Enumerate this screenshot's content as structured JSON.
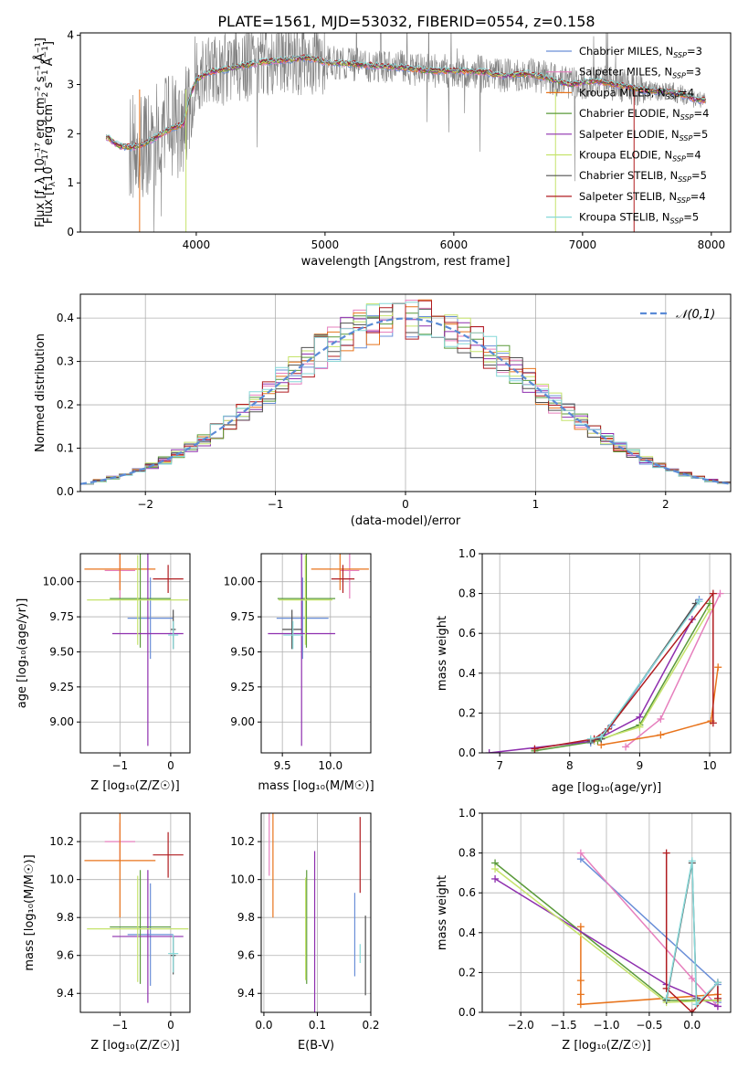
{
  "figure_title": "PLATE=1561, MJD=53032, FIBERID=0554, z=0.158",
  "colors": {
    "Chabrier MILES": "#6a8fd8",
    "Salpeter MILES": "#e67fbd",
    "Kroupa MILES": "#e8741c",
    "Chabrier ELODIE": "#5a9a3a",
    "Salpeter ELODIE": "#8e2fae",
    "Kroupa ELODIE": "#c5e36b",
    "Chabrier STELIB": "#505050",
    "Salpeter STELIB": "#b01c20",
    "Kroupa STELIB": "#86d8d8",
    "data": "#808080"
  },
  "models": [
    {
      "name": "Chabrier MILES",
      "nssp": "3",
      "Z": -0.4,
      "Zerr": 0.45,
      "age": 9.74,
      "ageerr": 0.29,
      "mass": 9.71,
      "masserr": 0.27,
      "ebv": 0.17,
      "ebverr": 0.22
    },
    {
      "name": "Salpeter MILES",
      "nssp": "3",
      "Z": -1.0,
      "Zerr": 0.3,
      "age": 10.08,
      "ageerr": 0.2,
      "mass": 10.2,
      "masserr": 0.1,
      "ebv": 0.01,
      "ebverr": 0.18
    },
    {
      "name": "Kroupa MILES",
      "nssp": "4",
      "Z": -1.0,
      "Zerr": 0.7,
      "age": 10.09,
      "ageerr": 0.15,
      "mass": 10.1,
      "masserr": 0.3,
      "ebv": 0.017,
      "ebverr": 0.3
    },
    {
      "name": "Chabrier ELODIE",
      "nssp": "4",
      "Z": -0.6,
      "Zerr": 0.6,
      "age": 9.88,
      "ageerr": 0.35,
      "mass": 9.75,
      "masserr": 0.3,
      "ebv": 0.08,
      "ebverr": 0.3
    },
    {
      "name": "Salpeter ELODIE",
      "nssp": "5",
      "Z": -0.45,
      "Zerr": 0.7,
      "age": 9.63,
      "ageerr": 0.8,
      "mass": 9.7,
      "masserr": 0.35,
      "ebv": 0.095,
      "ebverr": 0.45
    },
    {
      "name": "Kroupa ELODIE",
      "nssp": "4",
      "Z": -0.65,
      "Zerr": 1.0,
      "age": 9.87,
      "ageerr": 0.32,
      "mass": 9.74,
      "masserr": 0.28,
      "ebv": 0.078,
      "ebverr": 0.27
    },
    {
      "name": "Chabrier STELIB",
      "nssp": "5",
      "Z": 0.05,
      "Zerr": 0.05,
      "age": 9.66,
      "ageerr": 0.14,
      "mass": 9.6,
      "masserr": 0.1,
      "ebv": 0.19,
      "ebverr": 0.21
    },
    {
      "name": "Salpeter STELIB",
      "nssp": "4",
      "Z": -0.05,
      "Zerr": 0.3,
      "age": 10.02,
      "ageerr": 0.1,
      "mass": 10.13,
      "masserr": 0.12,
      "ebv": 0.18,
      "ebverr": 0.2
    },
    {
      "name": "Kroupa STELIB",
      "nssp": "5",
      "Z": 0.05,
      "Zerr": 0.1,
      "age": 9.62,
      "ageerr": 0.1,
      "mass": 9.61,
      "masserr": 0.1,
      "ebv": 0.18,
      "ebverr": 0.05
    }
  ],
  "chart_data": [
    {
      "id": "spectrum",
      "type": "line",
      "xlabel": "wavelength [Angstrom, rest frame]",
      "ylabel": "Flux [f_λ 10⁻¹⁷ erg cm⁻² s⁻¹ Å⁻¹]",
      "xlim": [
        3100,
        8150
      ],
      "ylim": [
        0,
        4.05
      ],
      "xticks": [
        4000,
        5000,
        6000,
        7000,
        8000
      ],
      "yticks": [
        0,
        1,
        2,
        3,
        4
      ],
      "legend_position": "upper-right",
      "legend": [
        "Chabrier MILES, N_SSP=3",
        "Salpeter MILES, N_SSP=3",
        "Kroupa MILES, N_SSP=4",
        "Chabrier ELODIE, N_SSP=4",
        "Salpeter ELODIE, N_SSP=5",
        "Kroupa ELODIE, N_SSP=4",
        "Chabrier STELIB, N_SSP=5",
        "Salpeter STELIB, N_SSP=4",
        "Kroupa STELIB, N_SSP=5"
      ],
      "continuum": [
        [
          3300,
          1.95
        ],
        [
          3400,
          1.75
        ],
        [
          3500,
          1.72
        ],
        [
          3600,
          1.8
        ],
        [
          3700,
          1.95
        ],
        [
          3800,
          2.1
        ],
        [
          3900,
          2.2
        ],
        [
          3950,
          2.75
        ],
        [
          4000,
          3.1
        ],
        [
          4100,
          3.25
        ],
        [
          4200,
          3.3
        ],
        [
          4300,
          3.35
        ],
        [
          4400,
          3.4
        ],
        [
          4500,
          3.45
        ],
        [
          4700,
          3.5
        ],
        [
          4861,
          3.55
        ],
        [
          5000,
          3.45
        ],
        [
          5200,
          3.42
        ],
        [
          5400,
          3.38
        ],
        [
          5600,
          3.35
        ],
        [
          5800,
          3.28
        ],
        [
          6000,
          3.28
        ],
        [
          6200,
          3.26
        ],
        [
          6400,
          3.18
        ],
        [
          6563,
          3.22
        ],
        [
          6700,
          3.15
        ],
        [
          6900,
          3.0
        ],
        [
          7100,
          3.08
        ],
        [
          7300,
          2.98
        ],
        [
          7500,
          2.88
        ],
        [
          7700,
          2.85
        ],
        [
          7900,
          2.68
        ]
      ]
    },
    {
      "id": "residuals",
      "type": "histogram",
      "xlabel": "(data-model)/error",
      "ylabel": "Normed distribution",
      "xlim": [
        -2.5,
        2.5
      ],
      "ylim": [
        0,
        0.455
      ],
      "xticks": [
        -2,
        -1,
        0,
        1,
        2
      ],
      "yticks": [
        0.0,
        0.1,
        0.2,
        0.3,
        0.4
      ],
      "reference": "𝒩(0,1)",
      "legend_position": "upper-right"
    },
    {
      "id": "age_vs_Z",
      "type": "errorbar",
      "xlabel": "Z [log₁₀(Z/Z☉)]",
      "ylabel": "age  [log₁₀(age/yr)]",
      "xlim": [
        -1.78,
        0.38
      ],
      "ylim": [
        8.78,
        10.2
      ],
      "xticks": [
        -1,
        0
      ],
      "yticks": [
        9.0,
        9.25,
        9.5,
        9.75,
        10.0
      ]
    },
    {
      "id": "age_vs_mass",
      "type": "errorbar",
      "xlabel": "mass [log₁₀(M/M☉)]",
      "ylabel": "",
      "xlim": [
        9.28,
        10.42
      ],
      "ylim": [
        8.78,
        10.2
      ],
      "xticks": [
        9.5,
        10.0
      ],
      "yticks": [
        9.0,
        9.25,
        9.5,
        9.75,
        10.0
      ]
    },
    {
      "id": "massweight_vs_age",
      "type": "line",
      "xlabel": "age  [log₁₀(age/yr)]",
      "ylabel": "mass weight",
      "xlim": [
        6.75,
        10.3
      ],
      "ylim": [
        0,
        1
      ],
      "xticks": [
        7,
        8,
        9,
        10
      ],
      "yticks": [
        0.0,
        0.2,
        0.4,
        0.6,
        0.8,
        1.0
      ],
      "series": [
        {
          "name": "Chabrier MILES",
          "points": [
            [
              8.3,
              0.05
            ],
            [
              8.6,
              0.14
            ],
            [
              9.85,
              0.77
            ]
          ]
        },
        {
          "name": "Salpeter MILES",
          "points": [
            [
              8.8,
              0.03
            ],
            [
              9.3,
              0.17
            ],
            [
              10.15,
              0.8
            ]
          ]
        },
        {
          "name": "Kroupa MILES",
          "points": [
            [
              8.45,
              0.04
            ],
            [
              9.3,
              0.09
            ],
            [
              10.02,
              0.16
            ],
            [
              10.12,
              0.43
            ]
          ]
        },
        {
          "name": "Chabrier ELODIE",
          "points": [
            [
              7.5,
              0.01
            ],
            [
              8.4,
              0.06
            ],
            [
              9.0,
              0.14
            ],
            [
              10.0,
              0.75
            ]
          ]
        },
        {
          "name": "Salpeter ELODIE",
          "points": [
            [
              6.85,
              0.0
            ],
            [
              8.35,
              0.06
            ],
            [
              9.0,
              0.18
            ],
            [
              9.75,
              0.67
            ]
          ]
        },
        {
          "name": "Kroupa ELODIE",
          "points": [
            [
              8.35,
              0.06
            ],
            [
              9.0,
              0.13
            ],
            [
              10.0,
              0.72
            ]
          ]
        },
        {
          "name": "Chabrier STELIB",
          "points": [
            [
              8.3,
              0.06
            ],
            [
              8.45,
              0.07
            ],
            [
              9.8,
              0.75
            ]
          ]
        },
        {
          "name": "Salpeter STELIB",
          "points": [
            [
              7.5,
              0.02
            ],
            [
              8.35,
              0.07
            ],
            [
              8.55,
              0.12
            ],
            [
              10.05,
              0.8
            ],
            [
              10.05,
              0.15
            ]
          ]
        },
        {
          "name": "Kroupa STELIB",
          "points": [
            [
              8.3,
              0.07
            ],
            [
              8.45,
              0.08
            ],
            [
              9.85,
              0.76
            ]
          ]
        }
      ]
    },
    {
      "id": "mass_vs_Z",
      "type": "errorbar",
      "xlabel": "Z [log₁₀(Z/Z☉)]",
      "ylabel": "mass [log₁₀(M/M☉)]",
      "xlim": [
        -1.78,
        0.38
      ],
      "ylim": [
        9.3,
        10.35
      ],
      "xticks": [
        -1,
        0
      ],
      "yticks": [
        9.4,
        9.6,
        9.8,
        10.0,
        10.2
      ]
    },
    {
      "id": "mass_vs_ebv",
      "type": "errorbar",
      "xlabel": "E(B-V)",
      "ylabel": "",
      "xlim": [
        -0.005,
        0.2
      ],
      "ylim": [
        9.3,
        10.35
      ],
      "xticks": [
        0.0,
        0.1,
        0.2
      ],
      "yticks": [
        9.4,
        9.6,
        9.8,
        10.0,
        10.2
      ]
    },
    {
      "id": "massweight_vs_Z",
      "type": "line",
      "xlabel": "Z [log₁₀(Z/Z☉)]",
      "ylabel": "mass weight",
      "xlim": [
        -2.45,
        0.45
      ],
      "ylim": [
        0,
        1
      ],
      "xticks": [
        -2.0,
        -1.5,
        -1.0,
        -0.5,
        0.0
      ],
      "yticks": [
        0.0,
        0.2,
        0.4,
        0.6,
        0.8,
        1.0
      ],
      "series": [
        {
          "name": "Chabrier MILES",
          "points": [
            [
              -1.3,
              0.77
            ],
            [
              0.3,
              0.14
            ],
            [
              0.3,
              0.05
            ]
          ]
        },
        {
          "name": "Salpeter MILES",
          "points": [
            [
              -1.3,
              0.8
            ],
            [
              0.0,
              0.17
            ],
            [
              0.3,
              0.03
            ]
          ]
        },
        {
          "name": "Kroupa MILES",
          "points": [
            [
              -1.3,
              0.43
            ],
            [
              -1.3,
              0.16
            ],
            [
              -1.3,
              0.09
            ],
            [
              -1.3,
              0.04
            ],
            [
              0.3,
              0.09
            ]
          ]
        },
        {
          "name": "Chabrier ELODIE",
          "points": [
            [
              -2.3,
              0.75
            ],
            [
              -0.3,
              0.06
            ],
            [
              0.3,
              0.06
            ]
          ]
        },
        {
          "name": "Salpeter ELODIE",
          "points": [
            [
              -2.3,
              0.67
            ],
            [
              -0.3,
              0.14
            ],
            [
              0.3,
              0.03
            ]
          ]
        },
        {
          "name": "Kroupa ELODIE",
          "points": [
            [
              -2.3,
              0.72
            ],
            [
              -0.3,
              0.05
            ],
            [
              0.3,
              0.06
            ]
          ]
        },
        {
          "name": "Chabrier STELIB",
          "points": [
            [
              -0.3,
              0.06
            ],
            [
              0.0,
              0.75
            ],
            [
              0.05,
              0.07
            ]
          ]
        },
        {
          "name": "Salpeter STELIB",
          "points": [
            [
              -0.3,
              0.8
            ],
            [
              -0.3,
              0.12
            ],
            [
              0.0,
              0.0
            ],
            [
              0.3,
              0.15
            ],
            [
              0.3,
              0.07
            ]
          ]
        },
        {
          "name": "Kroupa STELIB",
          "points": [
            [
              -0.3,
              0.07
            ],
            [
              0.0,
              0.76
            ],
            [
              0.05,
              0.04
            ],
            [
              0.3,
              0.15
            ]
          ]
        }
      ]
    }
  ]
}
